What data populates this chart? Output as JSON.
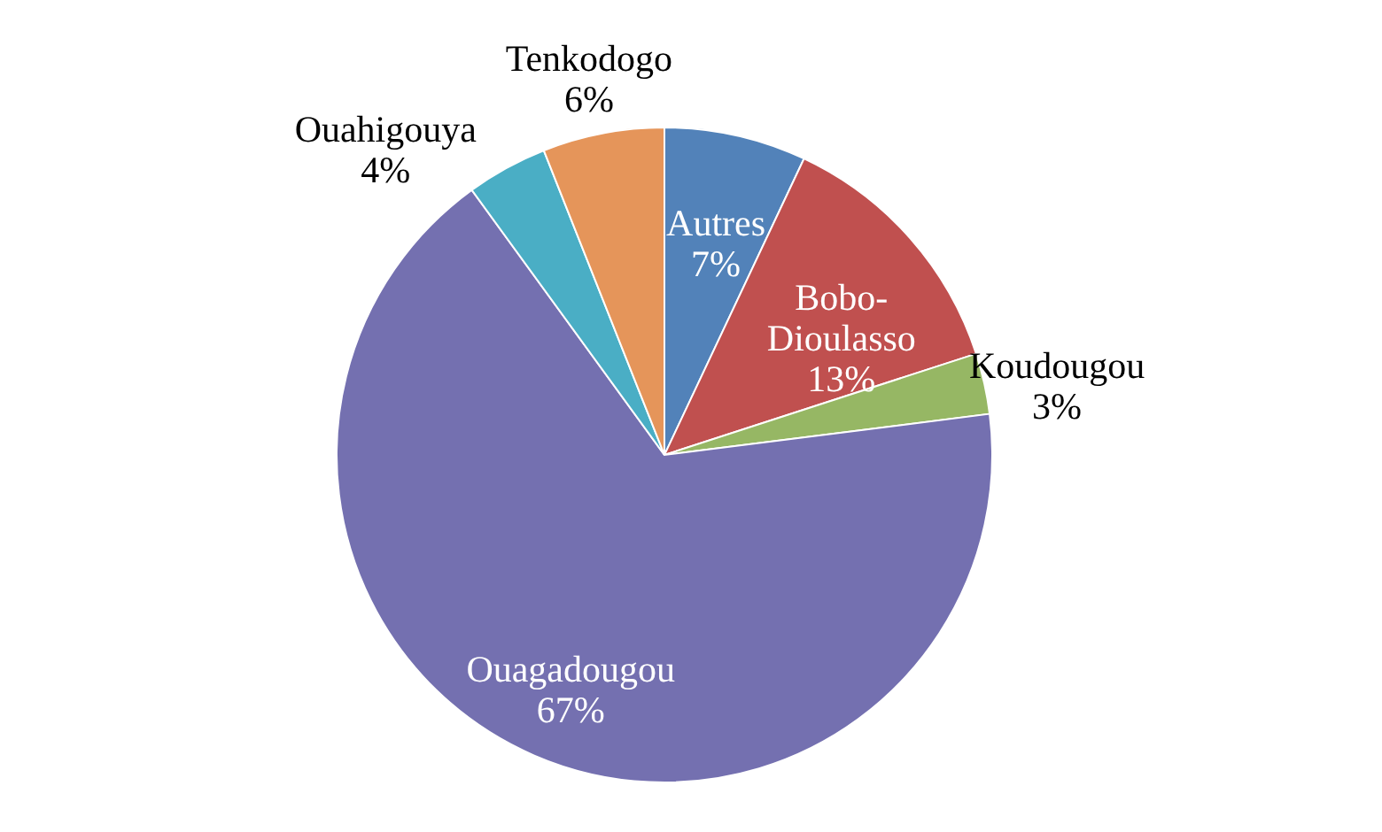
{
  "chart_data": {
    "type": "pie",
    "categories": [
      "Autres",
      "Bobo-Dioulasso",
      "Koudougou",
      "Ouagadougou",
      "Ouahigouya",
      "Tenkodogo"
    ],
    "values": [
      7,
      13,
      3,
      67,
      4,
      6
    ],
    "value_labels": [
      "7%",
      "13%",
      "3%",
      "67%",
      "4%",
      "6%"
    ],
    "colors": [
      "#5282b9",
      "#c0504f",
      "#96b764",
      "#7470b0",
      "#4aaec5",
      "#e5955a"
    ],
    "legend": false
  }
}
